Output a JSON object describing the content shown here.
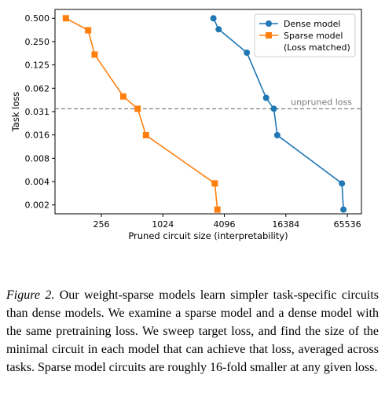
{
  "chart_data": {
    "type": "line",
    "xlabel": "Pruned circuit size (interpretability)",
    "ylabel": "Task loss",
    "xscale": "log2",
    "yscale": "log2",
    "xlim": [
      90,
      90000
    ],
    "ylim": [
      0.0015,
      0.65
    ],
    "xticks": [
      256,
      1024,
      4096,
      16384,
      65536
    ],
    "xtick_labels": [
      "256",
      "1024",
      "4096",
      "16384",
      "65536"
    ],
    "yticks": [
      0.5,
      0.25,
      0.125,
      0.0625,
      0.03125,
      0.015625,
      0.0078125,
      0.00390625,
      0.001953125
    ],
    "ytick_labels": [
      "0.500",
      "0.250",
      "0.125",
      "0.062",
      "0.031",
      "0.016",
      "0.008",
      "0.004",
      "0.002"
    ],
    "grid": false,
    "legend_position": "top-right",
    "reference_line": {
      "label": "unpruned loss",
      "y": 0.034,
      "color": "#7f7f7f"
    },
    "series": [
      {
        "name": "Dense model",
        "color": "#1f77b4",
        "marker": "circle",
        "x": [
          3200,
          3600,
          6800,
          10500,
          12500,
          13500,
          58000,
          60000
        ],
        "y": [
          0.5,
          0.36,
          0.18,
          0.047,
          0.034,
          0.0155,
          0.0037,
          0.0017
        ]
      },
      {
        "name": "Sparse model\n(Loss matched)",
        "color": "#ff7f0e",
        "marker": "square",
        "x": [
          115,
          190,
          220,
          420,
          580,
          700,
          3300,
          3500
        ],
        "y": [
          0.5,
          0.35,
          0.17,
          0.049,
          0.034,
          0.0155,
          0.0037,
          0.0017
        ]
      }
    ]
  },
  "caption": {
    "figure_label": "Figure 2.",
    "text": " Our weight-sparse models learn simpler task-specific circuits than dense models. We examine a sparse model and a dense model with the same pretraining loss. We sweep target loss, and find the size of the minimal circuit in each model that can achieve that loss, averaged across tasks. Sparse model circuits are roughly 16-fold smaller at any given loss."
  }
}
